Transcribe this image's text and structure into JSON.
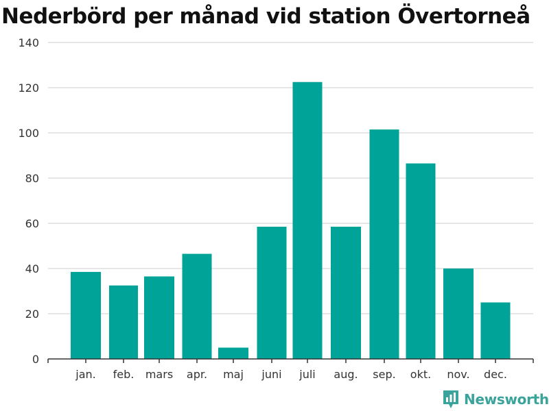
{
  "page": {
    "title": "Nederbörd per månad vid station Övertorneå",
    "brand": "Newsworthy"
  },
  "colors": {
    "bar": "#00a398",
    "grid": "#dddddd",
    "axis": "#333333",
    "brand": "#3aa39b"
  },
  "chart_data": {
    "type": "bar",
    "title": "Nederbörd per månad vid station Övertorneå",
    "categories": [
      "jan.",
      "feb.",
      "mars",
      "apr.",
      "maj",
      "juni",
      "juli",
      "aug.",
      "sep.",
      "okt.",
      "nov.",
      "dec."
    ],
    "values": [
      38.5,
      32.5,
      36.5,
      46.5,
      5,
      58.5,
      122.5,
      58.5,
      101.5,
      86.5,
      40,
      25
    ],
    "ylim": [
      0,
      140
    ],
    "yticks": [
      0,
      20,
      40,
      60,
      80,
      100,
      120,
      140
    ],
    "grid": true,
    "legend": "none"
  }
}
